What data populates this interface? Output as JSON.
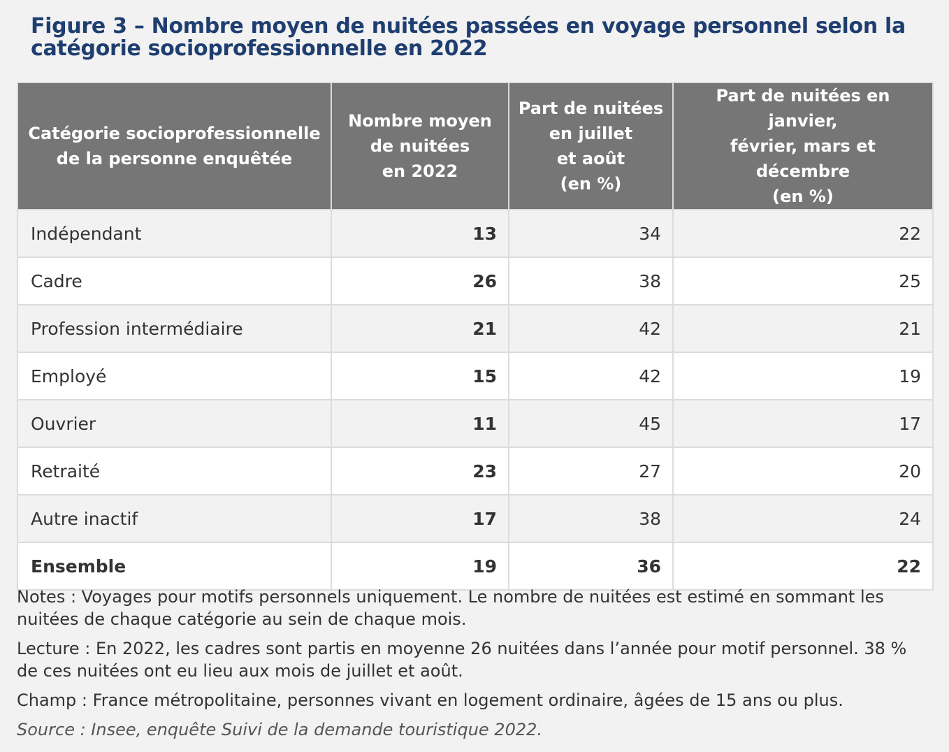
{
  "figure": {
    "title": "Figure 3 – Nombre moyen de nuitées passées en voyage personnel selon la catégorie socioprofessionnelle en 2022"
  },
  "table": {
    "headers": [
      "Catégorie socioprofessionnelle\nde la personne enquêtée",
      "Nombre moyen\nde nuitées\nen 2022",
      "Part de nuitées\nen juillet\net août\n(en %)",
      "Part de nuitées en janvier,\nfévrier, mars et décembre\n(en %)"
    ],
    "rows": [
      {
        "category": "Indépendant",
        "avg_nights": "13",
        "share_jul_aug": "34",
        "share_winter": "22"
      },
      {
        "category": "Cadre",
        "avg_nights": "26",
        "share_jul_aug": "38",
        "share_winter": "25"
      },
      {
        "category": "Profession intermédiaire",
        "avg_nights": "21",
        "share_jul_aug": "42",
        "share_winter": "21"
      },
      {
        "category": "Employé",
        "avg_nights": "15",
        "share_jul_aug": "42",
        "share_winter": "19"
      },
      {
        "category": "Ouvrier",
        "avg_nights": "11",
        "share_jul_aug": "45",
        "share_winter": "17"
      },
      {
        "category": "Retraité",
        "avg_nights": "23",
        "share_jul_aug": "27",
        "share_winter": "20"
      },
      {
        "category": "Autre inactif",
        "avg_nights": "17",
        "share_jul_aug": "38",
        "share_winter": "24"
      },
      {
        "category": "Ensemble",
        "avg_nights": "19",
        "share_jul_aug": "36",
        "share_winter": "22"
      }
    ]
  },
  "notes": {
    "notes_text": "Notes : Voyages pour motifs personnels uniquement. Le nombre de nuitées est estimé en sommant les nuitées de chaque catégorie au sein de chaque mois.",
    "lecture_text": "Lecture : En 2022, les cadres sont partis en moyenne 26 nuitées dans l’année pour motif personnel. 38 % de ces nuitées ont eu lieu aux mois de juillet et août.",
    "champ_text": "Champ : France métropolitaine, personnes vivant en logement ordinaire, âgées de 15 ans ou plus.",
    "source_text": "Source : Insee, enquête Suivi de la demande touristique 2022."
  },
  "colors": {
    "title": "#1f3e70",
    "header_bg": "#767676",
    "header_text": "#ffffff",
    "row_alt": "#f2f2f2",
    "row": "#ffffff",
    "border": "#dcdcdc"
  }
}
